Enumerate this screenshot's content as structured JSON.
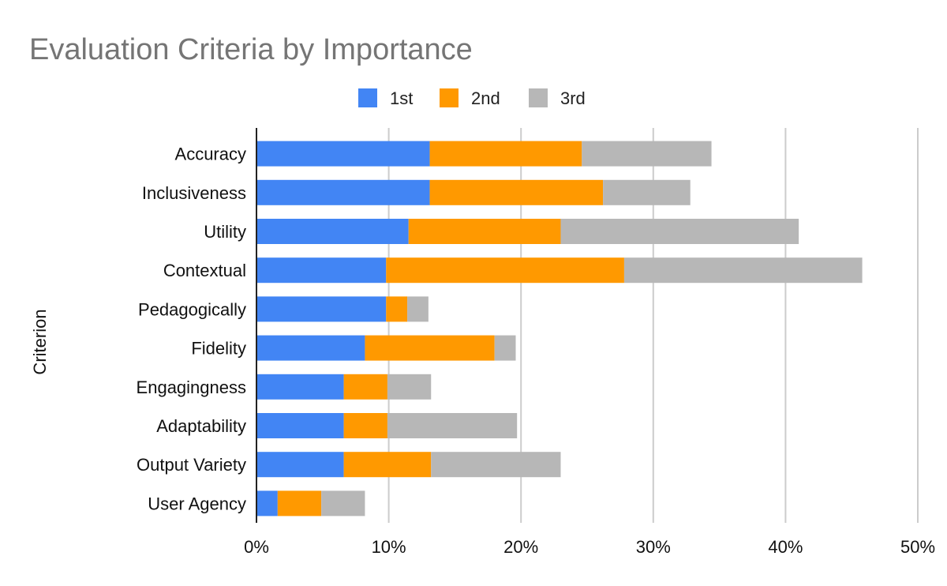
{
  "chart_data": {
    "type": "bar",
    "orientation": "horizontal",
    "stacked": true,
    "title": "Evaluation Criteria by Importance",
    "ylabel": "Criterion",
    "xlabel": "",
    "categories": [
      "Accuracy",
      "Inclusiveness",
      "Utility",
      "Contextual",
      "Pedagogically",
      "Fidelity",
      "Engagingness",
      "Adaptability",
      "Output Variety",
      "User Agency"
    ],
    "series": [
      {
        "name": "1st",
        "color": "#4285f4",
        "values": [
          13.1,
          13.1,
          11.5,
          9.8,
          9.8,
          8.2,
          6.6,
          6.6,
          6.6,
          1.6
        ]
      },
      {
        "name": "2nd",
        "color": "#ff9900",
        "values": [
          11.5,
          13.1,
          11.5,
          18.0,
          1.6,
          9.8,
          3.3,
          3.3,
          6.6,
          3.3
        ]
      },
      {
        "name": "3rd",
        "color": "#b7b7b7",
        "values": [
          9.8,
          6.6,
          18.0,
          18.0,
          1.6,
          1.6,
          3.3,
          9.8,
          9.8,
          3.3
        ]
      }
    ],
    "xlim": [
      0,
      50
    ],
    "xticks": [
      "0%",
      "10%",
      "20%",
      "30%",
      "40%",
      "50%"
    ],
    "xtick_values": [
      0,
      10,
      20,
      30,
      40,
      50
    ],
    "legend_position": "top",
    "grid": true
  }
}
